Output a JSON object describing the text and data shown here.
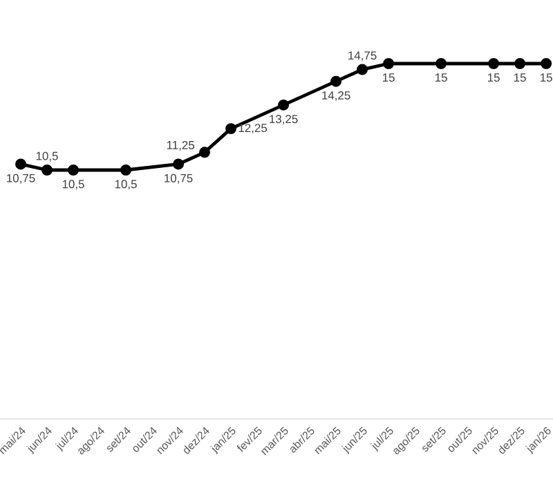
{
  "chart_data": {
    "type": "line",
    "categories": [
      "mai/24",
      "jun/24",
      "jul/24",
      "ago/24",
      "set/24",
      "out/24",
      "nov/24",
      "dez/24",
      "jan/25",
      "fev/25",
      "mar/25",
      "abr/25",
      "mai/25",
      "jun/25",
      "jul/25",
      "ago/25",
      "set/25",
      "out/25",
      "nov/25",
      "dez/25",
      "jan/26"
    ],
    "values": [
      10.75,
      10.5,
      10.5,
      null,
      10.5,
      null,
      10.75,
      11.25,
      12.25,
      null,
      13.25,
      null,
      14.25,
      14.75,
      15,
      null,
      15,
      null,
      15,
      15,
      15
    ],
    "value_labels": [
      "10,75",
      "10,5",
      "10,5",
      null,
      "10,5",
      null,
      "10,75",
      "11,25",
      "12,25",
      null,
      "13,25",
      null,
      "14,25",
      "14,75",
      "15",
      null,
      "15",
      null,
      "15",
      "15",
      "15"
    ],
    "color": "#000000",
    "marker": "circle",
    "line_style": "solid",
    "tick_labels": "x"
  }
}
